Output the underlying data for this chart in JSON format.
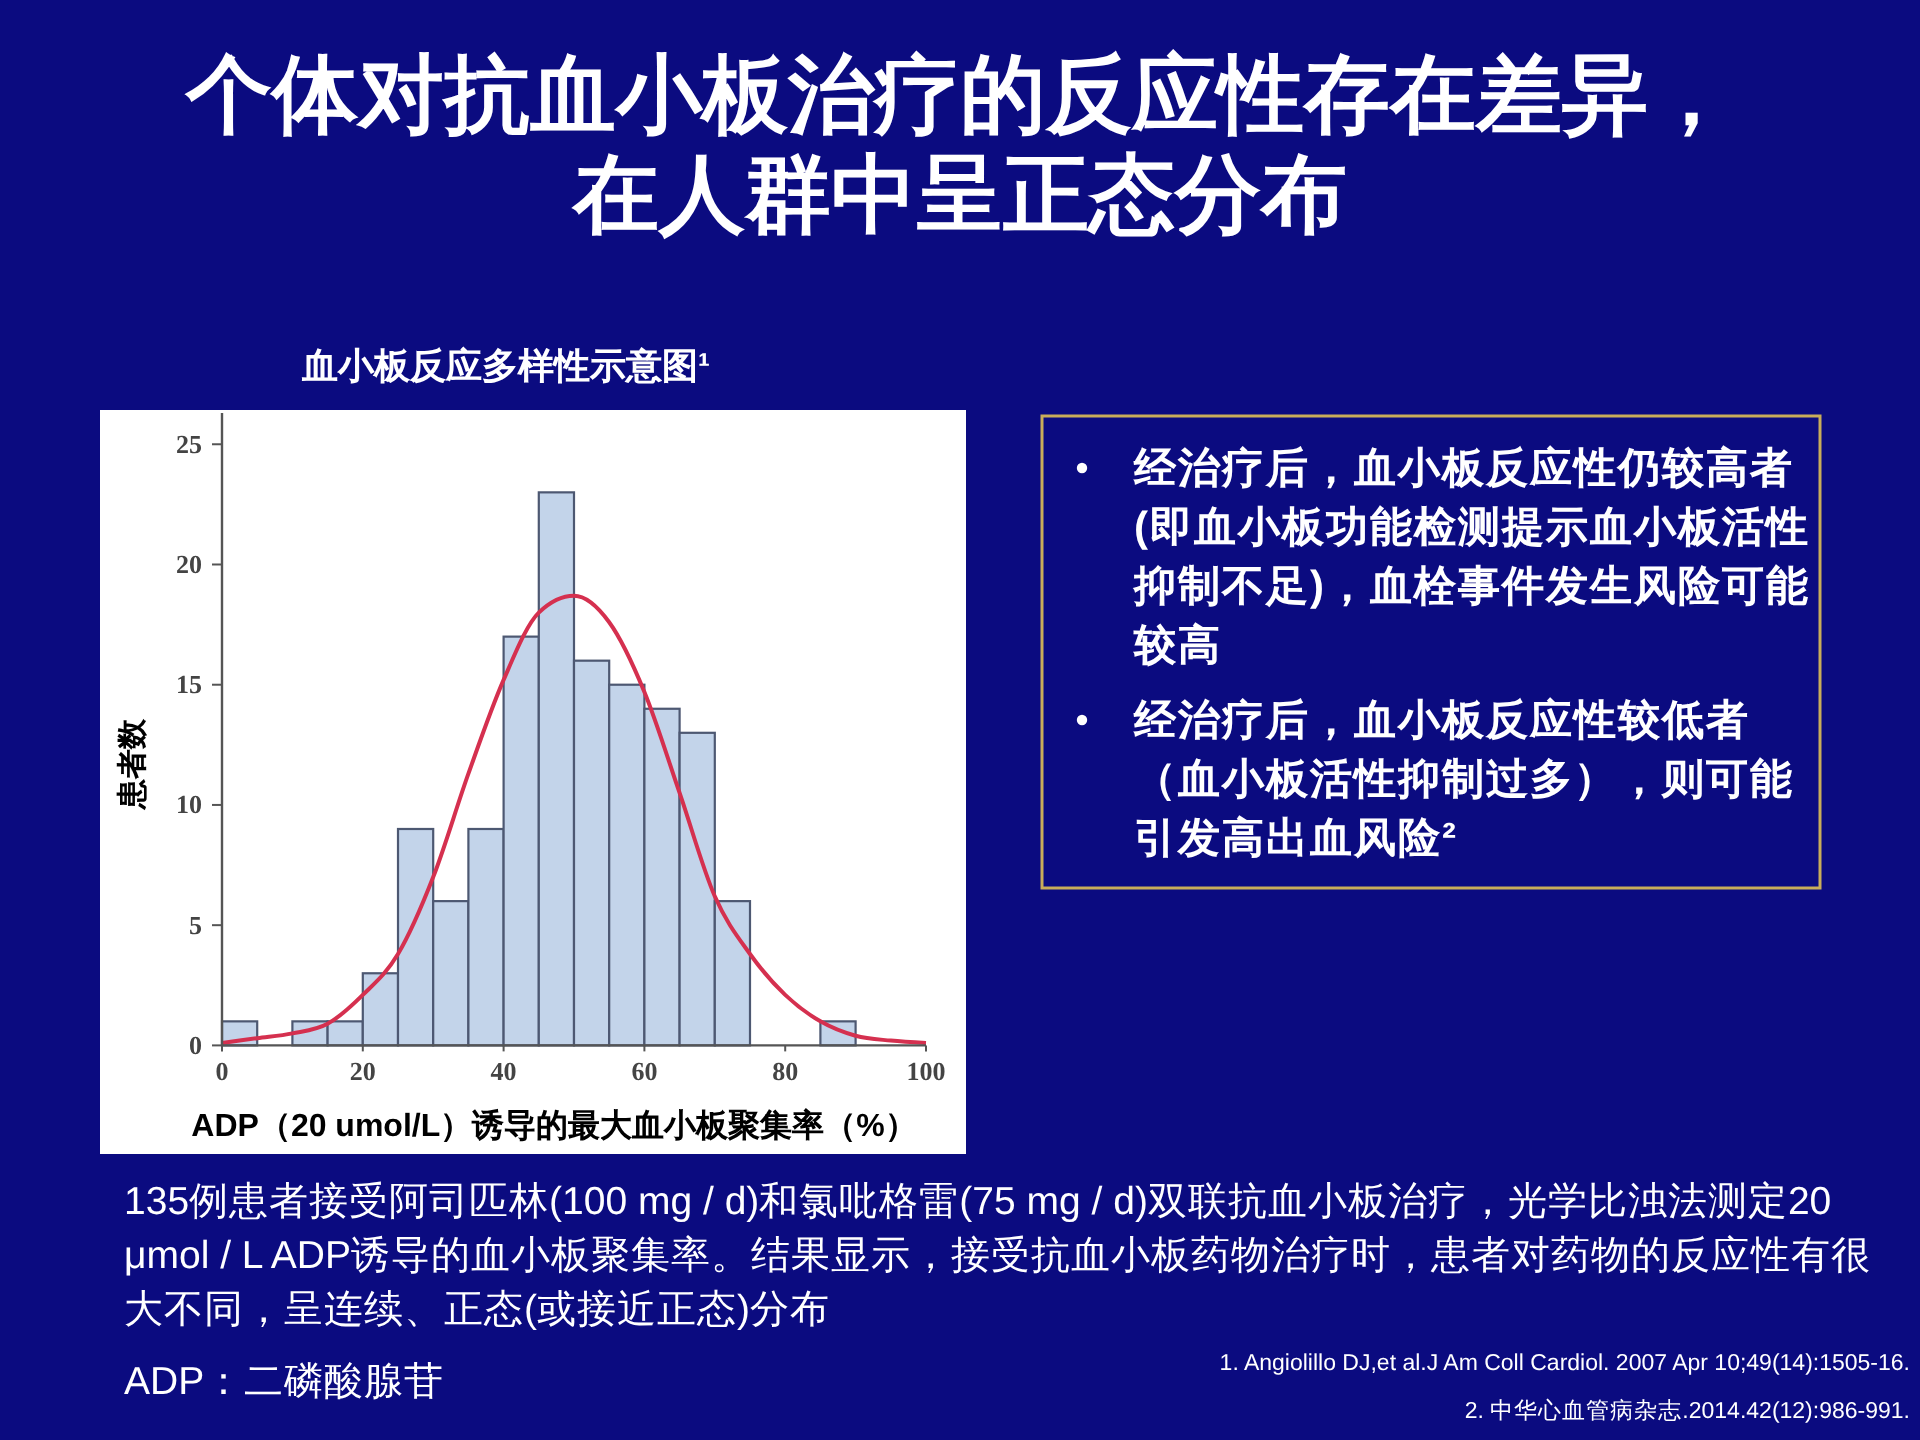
{
  "chart_data": {
    "type": "histogram",
    "title": "个体对抗血小板治疗的反应性存在差异，在人群中呈正态分布",
    "subtitle": "血小板反应多样性示意图¹",
    "xlabel": "ADP（20 umol/L）诱导的最大血小板聚集率（%）",
    "ylabel": "患者数",
    "bins": [
      0,
      5,
      10,
      15,
      20,
      25,
      30,
      35,
      40,
      45,
      50,
      55,
      60,
      65,
      70,
      75,
      80,
      85,
      90,
      95,
      100
    ],
    "series": [
      {
        "color": "#c3d4ea",
        "values": [
          1,
          0,
          1,
          1,
          3,
          9,
          6,
          9,
          17,
          23,
          16,
          15,
          14,
          13,
          6,
          0,
          0,
          1,
          0,
          0
        ]
      },
      {
        "type": "line",
        "color": "#d5304f",
        "x": [
          0,
          5,
          10,
          15,
          20,
          25,
          30,
          35,
          40,
          45,
          50,
          55,
          60,
          65,
          70,
          75,
          80,
          85,
          90,
          95,
          100
        ],
        "values": [
          0.1,
          0.3,
          0.5,
          0.9,
          2.1,
          3.8,
          7.0,
          11.3,
          15.2,
          18.0,
          18.7,
          17.6,
          14.7,
          10.5,
          6.2,
          3.8,
          2.1,
          1.0,
          0.4,
          0.2,
          0.1
        ]
      }
    ],
    "xlim": [
      0,
      100
    ],
    "xticks": [
      0,
      20,
      40,
      60,
      80,
      100
    ],
    "ylim": [
      0,
      26.3
    ],
    "yticks": [
      0,
      5,
      10,
      15,
      20,
      25
    ],
    "annotations": [
      "经治疗后，血小板反应性仍较高者(即血小板功能检测提示血小板活性抑制不足)，血栓事件发生风险可能较高",
      "经治疗后，血小板反应性较低者（血小板活性抑制过多），则可能引发高出血风险²",
      "135例患者接受阿司匹林(100 mg / d)和氯吡格雷(75 mg / d)双联抗血小板治疗，光学比浊法测定20 μmol / L ADP诱导的血小板聚集率。结果显示，接受抗血小板药物治疗时，患者对药物的反应性有很大不同，呈连续、正态(或接近正态)分布",
      "ADP：二磷酸腺苷",
      "1. Angiolillo DJ,et al.J Am Coll Cardiol. 2007 Apr 10;49(14):1505-16.",
      "2. 中华心血管病杂志.2014.42(12):986-991."
    ]
  }
}
